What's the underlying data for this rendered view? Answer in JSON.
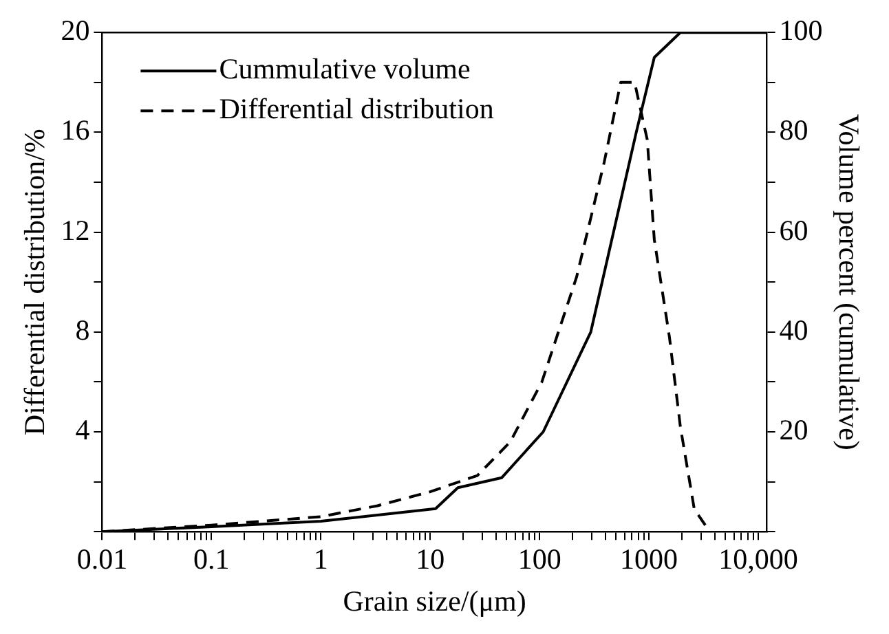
{
  "chart_data": {
    "type": "line",
    "xlabel": "Grain size/(μm)",
    "ylabel": "Differential distribution/%",
    "y2label": "Volume percent (cumulative)",
    "log": "x",
    "grid": false,
    "legend": "top left",
    "marker": "none",
    "xlim": [
      0.01,
      12000
    ],
    "xticks": [
      0.01,
      {
        "value": 0.02,
        "label": null
      },
      {
        "value": 0.03,
        "label": null
      },
      {
        "value": 0.04,
        "label": null
      },
      {
        "value": 0.05,
        "label": null
      },
      {
        "value": 0.06,
        "label": null
      },
      {
        "value": 0.07,
        "label": null
      },
      {
        "value": 0.08,
        "label": null
      },
      {
        "value": 0.09,
        "label": null
      },
      0.1,
      {
        "value": 0.2,
        "label": null
      },
      {
        "value": 0.3,
        "label": null
      },
      {
        "value": 0.4,
        "label": null
      },
      {
        "value": 0.5,
        "label": null
      },
      {
        "value": 0.6,
        "label": null
      },
      {
        "value": 0.7,
        "label": null
      },
      {
        "value": 0.8,
        "label": null
      },
      {
        "value": 0.9,
        "label": null
      },
      1,
      {
        "value": 2,
        "label": null
      },
      {
        "value": 3,
        "label": null
      },
      {
        "value": 4,
        "label": null
      },
      {
        "value": 5,
        "label": null
      },
      {
        "value": 6,
        "label": null
      },
      {
        "value": 7,
        "label": null
      },
      {
        "value": 8,
        "label": null
      },
      {
        "value": 9,
        "label": null
      },
      10,
      {
        "value": 20,
        "label": null
      },
      {
        "value": 30,
        "label": null
      },
      {
        "value": 40,
        "label": null
      },
      {
        "value": 50,
        "label": null
      },
      {
        "value": 60,
        "label": null
      },
      {
        "value": 70,
        "label": null
      },
      {
        "value": 80,
        "label": null
      },
      {
        "value": 90,
        "label": null
      },
      100,
      {
        "value": 200,
        "label": null
      },
      {
        "value": 300,
        "label": null
      },
      {
        "value": 400,
        "label": null
      },
      {
        "value": 500,
        "label": null
      },
      {
        "value": 600,
        "label": null
      },
      {
        "value": 700,
        "label": null
      },
      {
        "value": 800,
        "label": null
      },
      {
        "value": 900,
        "label": null
      },
      1000,
      {
        "value": 2000,
        "label": null
      },
      {
        "value": 3000,
        "label": null
      },
      {
        "value": 4000,
        "label": null
      },
      {
        "value": 5000,
        "label": null
      },
      {
        "value": 6000,
        "label": null
      },
      {
        "value": 7000,
        "label": null
      },
      {
        "value": 8000,
        "label": null
      },
      {
        "value": 9000,
        "label": null
      },
      {
        "value": 10000,
        "label": "10,000"
      }
    ],
    "ylim": [
      0,
      20
    ],
    "yticks": [
      {
        "value": 0,
        "label": null
      },
      {
        "value": 2,
        "label": null
      },
      4,
      {
        "value": 6,
        "label": null
      },
      8,
      {
        "value": 10,
        "label": null
      },
      12,
      {
        "value": 14,
        "label": null
      },
      16,
      {
        "value": 18,
        "label": null
      },
      20
    ],
    "y2lim": [
      0,
      100
    ],
    "y2ticks": [
      {
        "value": 0,
        "label": null
      },
      {
        "value": 10,
        "label": null
      },
      20,
      {
        "value": 30,
        "label": null
      },
      40,
      {
        "value": 50,
        "label": null
      },
      60,
      {
        "value": 70,
        "label": null
      },
      80,
      {
        "value": 90,
        "label": null
      },
      100
    ],
    "series": [
      {
        "name": "Cummulative volume",
        "color": "#000000",
        "line_style": "solid",
        "axis": "y2",
        "x": [
          0.01,
          0.1,
          1,
          11.2,
          17.9,
          45,
          108,
          294,
          766,
          1120,
          1940,
          12000
        ],
        "values": [
          0,
          1,
          2.1,
          4.6,
          8.8,
          10.8,
          20,
          40,
          80,
          95,
          100,
          100
        ]
      },
      {
        "name": "Differential distribution",
        "color": "#000000",
        "line_style": "dashed",
        "axis": "y",
        "x": [
          0.01,
          0.1,
          1,
          3.3,
          10,
          27,
          54,
          105,
          218,
          390,
          552,
          740,
          966,
          1120,
          1540,
          1940,
          2600,
          3600
        ],
        "values": [
          0,
          0.26,
          0.6,
          1.04,
          1.6,
          2.25,
          3.6,
          6.0,
          10.2,
          14.8,
          18.0,
          18.0,
          15.7,
          11.7,
          7.8,
          4.2,
          0.9,
          0
        ]
      }
    ]
  }
}
